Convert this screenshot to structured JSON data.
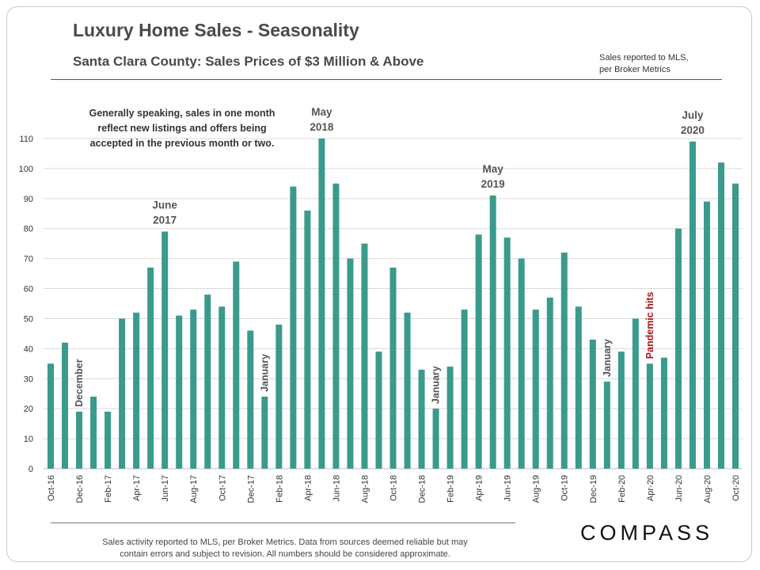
{
  "header": {
    "title": "Luxury Home Sales - Seasonality",
    "subtitle": "Santa Clara County: Sales Prices of $3 Million  & Above",
    "source_line1": "Sales reported to MLS,",
    "source_line2": "per Broker Metrics"
  },
  "footer": {
    "line1": "Sales activity reported to MLS, per Broker Metrics. Data from sources deemed  reliable but may",
    "line2": "contain errors and subject to revision. All numbers should be considered approximate.",
    "logo": "COMPASS"
  },
  "colors": {
    "bar": "#3a9a8c",
    "grid": "#d9d9d9",
    "annotation": "#555555",
    "highlight": "#a8141b"
  },
  "chart_data": {
    "type": "bar",
    "categories": [
      "Oct-16",
      "Nov-16",
      "Dec-16",
      "Jan-17",
      "Feb-17",
      "Mar-17",
      "Apr-17",
      "May-17",
      "Jun-17",
      "Jul-17",
      "Aug-17",
      "Sep-17",
      "Oct-17",
      "Nov-17",
      "Dec-17",
      "Jan-18",
      "Feb-18",
      "Mar-18",
      "Apr-18",
      "May-18",
      "Jun-18",
      "Jul-18",
      "Aug-18",
      "Sep-18",
      "Oct-18",
      "Nov-18",
      "Dec-18",
      "Jan-19",
      "Feb-19",
      "Mar-19",
      "Apr-19",
      "May-19",
      "Jun-19",
      "Jul-19",
      "Aug-19",
      "Sep-19",
      "Oct-19",
      "Nov-19",
      "Dec-19",
      "Jan-20",
      "Feb-20",
      "Mar-20",
      "Apr-20",
      "May-20",
      "Jun-20",
      "Jul-20",
      "Aug-20",
      "Sep-20",
      "Oct-20"
    ],
    "tick_labels": [
      "Oct-16",
      "",
      "Dec-16",
      "",
      "Feb-17",
      "",
      "Apr-17",
      "",
      "Jun-17",
      "",
      "Aug-17",
      "",
      "Oct-17",
      "",
      "Dec-17",
      "",
      "Feb-18",
      "",
      "Apr-18",
      "",
      "Jun-18",
      "",
      "Aug-18",
      "",
      "Oct-18",
      "",
      "Dec-18",
      "",
      "Feb-19",
      "",
      "Apr-19",
      "",
      "Jun-19",
      "",
      "Aug-19",
      "",
      "Oct-19",
      "",
      "Dec-19",
      "",
      "Feb-20",
      "",
      "Apr-20",
      "",
      "Jun-20",
      "",
      "Aug-20",
      "",
      "Oct-20"
    ],
    "values": [
      35,
      42,
      19,
      24,
      19,
      50,
      52,
      67,
      79,
      51,
      53,
      58,
      54,
      69,
      46,
      24,
      48,
      94,
      86,
      110,
      95,
      70,
      75,
      39,
      67,
      52,
      33,
      20,
      34,
      53,
      78,
      91,
      77,
      70,
      53,
      57,
      72,
      54,
      43,
      29,
      39,
      50,
      35,
      37,
      80,
      109,
      89,
      102,
      95
    ],
    "ylim": [
      0,
      110
    ],
    "yticks": [
      0,
      10,
      20,
      30,
      40,
      50,
      60,
      70,
      80,
      90,
      100,
      110
    ],
    "grid": true,
    "annotations": [
      {
        "type": "note",
        "lines": [
          "Generally speaking, sales in one month",
          "reflect new listings and offers being",
          "accepted in the previous month or two."
        ]
      },
      {
        "type": "peak",
        "category": "Jun-17",
        "lines": [
          "June",
          "2017"
        ]
      },
      {
        "type": "peak",
        "category": "May-18",
        "lines": [
          "May",
          "2018"
        ]
      },
      {
        "type": "peak",
        "category": "May-19",
        "lines": [
          "May",
          "2019"
        ]
      },
      {
        "type": "peak",
        "category": "Jul-20",
        "lines": [
          "July",
          "2020"
        ]
      },
      {
        "type": "vertical",
        "category": "Dec-16",
        "text": "December"
      },
      {
        "type": "vertical",
        "category": "Jan-18",
        "text": "January"
      },
      {
        "type": "vertical",
        "category": "Jan-19",
        "text": "January"
      },
      {
        "type": "vertical",
        "category": "Jan-20",
        "text": "January"
      },
      {
        "type": "vertical-highlight",
        "category": "Apr-20",
        "text": "Pandemic hits"
      }
    ]
  }
}
